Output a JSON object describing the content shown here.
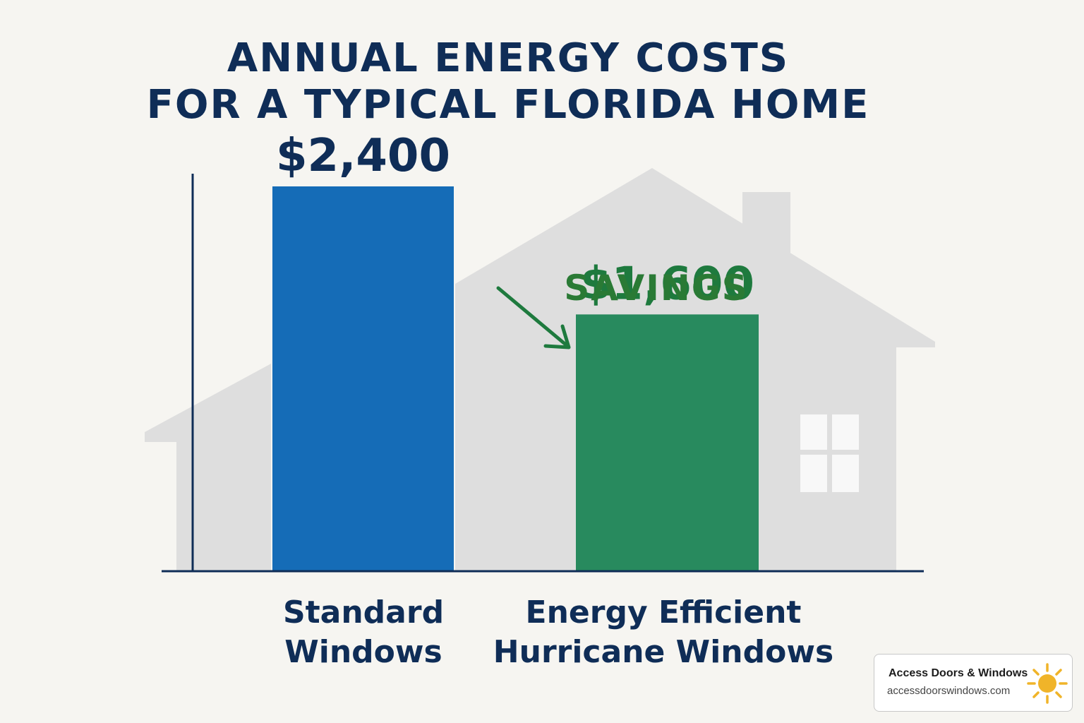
{
  "title": {
    "line1": "ANNUAL ENERGY COSTS",
    "line2": "FOR A TYPICAL FLORIDA HOME"
  },
  "chart_data": {
    "type": "bar",
    "title": "ANNUAL ENERGY COSTS FOR A TYPICAL FLORIDA HOME",
    "categories": [
      "Standard Windows",
      "Energy Efficient Hurricane Windows"
    ],
    "category_lines": [
      [
        "Standard",
        "Windows"
      ],
      [
        "Energy Efficient",
        "Hurricane Windows"
      ]
    ],
    "values": [
      2400,
      1600
    ],
    "value_labels": [
      "$2,400",
      "$1,600"
    ],
    "ylim": [
      0,
      3000
    ],
    "grid": false,
    "annotation": "SAVINGS"
  },
  "colors": {
    "standard_bar": "#156cb7",
    "efficient_bar": "#288a5e",
    "title": "#0f2d57",
    "savings": "#2a7a35",
    "efficient_value": "#1e7a3e",
    "house": "#dedede"
  },
  "badge": {
    "name": "Access Doors & Windows",
    "url": "accessdoorswindows.com",
    "icon": "sun-icon"
  }
}
